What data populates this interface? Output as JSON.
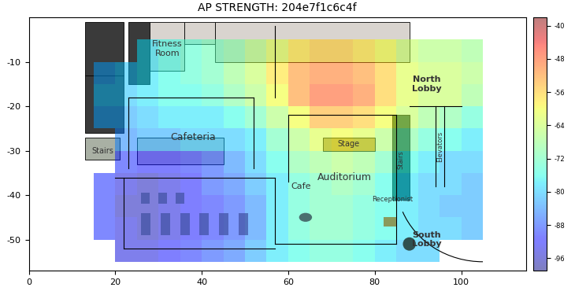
{
  "chart_data": {
    "type": "heatmap",
    "title": "AP STRENGTH: 204e7f1c6c4f",
    "xlim": [
      0,
      115
    ],
    "ylim": [
      -57,
      0
    ],
    "xticks": [
      0,
      20,
      40,
      60,
      80,
      100
    ],
    "yticks": [
      -50,
      -40,
      -30,
      -20,
      -10
    ],
    "x": [
      15,
      20,
      25,
      30,
      35,
      40,
      45,
      50,
      55,
      60,
      65,
      70,
      75,
      80,
      85,
      90,
      95,
      100,
      105
    ],
    "y": [
      -5,
      -10,
      -15,
      -20,
      -25,
      -30,
      -35,
      -40,
      -45,
      -50,
      -55
    ],
    "cells": [
      [
        null,
        null,
        -78,
        -76,
        -74,
        -72,
        -70,
        -66,
        -62,
        -58,
        -56,
        -56,
        -58,
        -60,
        -64,
        -66,
        -66,
        -68
      ],
      [
        -82,
        -80,
        -78,
        -76,
        -74,
        -72,
        -68,
        -64,
        -58,
        -52,
        -50,
        -50,
        -52,
        -56,
        -62,
        -64,
        -64,
        -66
      ],
      [
        -80,
        -80,
        -78,
        -76,
        -76,
        -74,
        -70,
        -66,
        -60,
        -52,
        -48,
        -48,
        -50,
        -56,
        -62,
        -64,
        -64,
        -68
      ],
      [
        -82,
        -82,
        -80,
        -78,
        -78,
        -78,
        -76,
        -72,
        -66,
        -60,
        -54,
        -54,
        -56,
        -60,
        -64,
        -68,
        -70,
        -74
      ],
      [
        null,
        -84,
        -82,
        -82,
        -80,
        -80,
        -80,
        -78,
        -72,
        -66,
        -62,
        -60,
        -62,
        -66,
        -70,
        -74,
        -76,
        -78
      ],
      [
        null,
        -90,
        -92,
        -92,
        -90,
        -88,
        -84,
        -80,
        -76,
        -70,
        -68,
        -66,
        -68,
        -72,
        -76,
        -78,
        -80,
        -80
      ],
      [
        -90,
        -94,
        -96,
        -94,
        -92,
        -88,
        -86,
        -82,
        -78,
        -74,
        -72,
        -70,
        -72,
        -76,
        -78,
        -80,
        -80,
        -82
      ],
      [
        -90,
        -96,
        -96,
        -94,
        -92,
        -90,
        -88,
        -84,
        -78,
        -74,
        -72,
        -72,
        -74,
        -76,
        -78,
        -80,
        -82,
        -82
      ],
      [
        -90,
        -94,
        -96,
        -94,
        -92,
        -90,
        -88,
        -84,
        -78,
        -74,
        -72,
        -72,
        -74,
        -76,
        -78,
        -80,
        -80,
        -82
      ],
      [
        null,
        -94,
        -94,
        -92,
        -90,
        -88,
        -86,
        -82,
        -78,
        -76,
        -74,
        -74,
        -76,
        -78,
        -80,
        -80,
        null,
        null
      ]
    ],
    "zlim": [
      -99,
      -38
    ],
    "zticks": [
      -40,
      -48,
      -56,
      -64,
      -72,
      -80,
      -88,
      -96
    ],
    "annotations": [
      "Fitness\nRoom",
      "Cafeteria",
      "Stairs",
      "Cafe",
      "Auditorium",
      "Stage",
      "North\nLobby",
      "South\nLobby",
      "Receptionist",
      "Stairs",
      "Elevators"
    ]
  }
}
